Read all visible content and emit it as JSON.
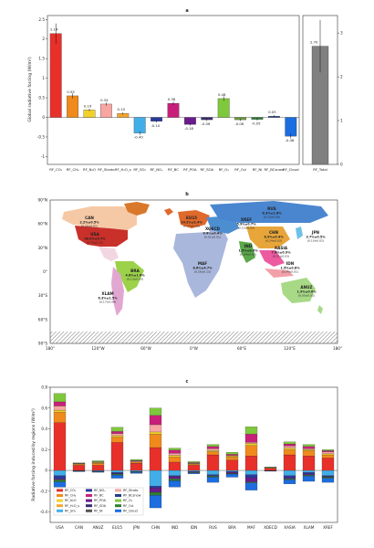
{
  "panels": {
    "a": {
      "label": "a",
      "ylabel": "Global radiative forcing (W/m²)",
      "right_ylabel": "",
      "yticks": [
        "-1",
        "-0.5",
        "0",
        "0.5",
        "1",
        "1.5",
        "2",
        "2.5"
      ],
      "right_yticks": [
        "0",
        "1",
        "2",
        "3"
      ]
    },
    "b": {
      "label": "b",
      "lat_ticks": [
        "90°N",
        "60°N",
        "30°N",
        "0°",
        "30°S",
        "60°S",
        "90°S"
      ],
      "lon_ticks": [
        "180°",
        "120°W",
        "60°W",
        "0°W",
        "60°E",
        "120°E",
        "180°"
      ]
    },
    "c": {
      "label": "c",
      "ylabel": "Radiative forcing induced by regions (W/m²)",
      "yticks": [
        "-0.4",
        "-0.2",
        "0",
        "0.2",
        "0.4",
        "0.6",
        "0.8"
      ]
    }
  },
  "chart_data": [
    {
      "type": "bar",
      "panel": "a",
      "categories": [
        "RF_CO2",
        "RF_CH4",
        "RF_N2O",
        "RF_Strato",
        "RF_H2Os",
        "RF_SO2",
        "RF_NOx",
        "RF_BC",
        "RF_POA",
        "RF_SOA",
        "RF_O3",
        "RF_O3t",
        "RF_Ni",
        "RF_BCsnow",
        "RF_Cloud"
      ],
      "category_labels": [
        "RF_CO₂",
        "RF_CH₄",
        "RF_N₂O",
        "RF_Strato",
        "RF_H₂O_s",
        "RF_SO₂",
        "RF_NOₓ",
        "RF_BC",
        "RF_POA",
        "RF_SOA",
        "RF_O₃",
        "RF_O₃t",
        "RF_Ni",
        "RF_BCsnow",
        "RF_Cloud"
      ],
      "values": [
        2.14,
        0.55,
        0.19,
        0.34,
        0.1,
        -0.4,
        -0.1,
        0.36,
        -0.18,
        -0.06,
        0.48,
        -0.06,
        -0.05,
        0.03,
        -0.48
      ],
      "value_labels": [
        "2.14",
        "0.55",
        "0.19",
        "0.34",
        "0.10",
        "-0.40",
        "-0.10",
        "0.36",
        "-0.18",
        "-0.06",
        "0.48",
        "-0.06",
        "-0.05",
        "0.03",
        "-0.48"
      ],
      "colors": [
        "#e8302a",
        "#f08a1c",
        "#f2d02a",
        "#f7a6a2",
        "#f3a62e",
        "#42aee8",
        "#2a3b9e",
        "#c8207a",
        "#6a1b8c",
        "#3b2a6e",
        "#7ec83c",
        "#6b9a3a",
        "#2e7d32",
        "#1f3f8a",
        "#1b6de0"
      ],
      "ylim": [
        -1.2,
        2.6
      ],
      "total": {
        "label": "RF_Total",
        "value": 2.7,
        "value_label": "2.70",
        "ylim": [
          0,
          3.4
        ],
        "color": "#808080"
      }
    },
    {
      "type": "map",
      "panel": "b",
      "regions": [
        {
          "name": "CAN",
          "value": "2.2%±0.5%",
          "sub": "(0.06±0.01)"
        },
        {
          "name": "USA",
          "value": "28.0%±5.7%",
          "sub": "(0.76±0.15)"
        },
        {
          "name": "EU15",
          "value": "14.2%±2.4%",
          "sub": "(0.37±0.06)"
        },
        {
          "name": "XOECD",
          "value": "0.4%±0.4%",
          "sub": "(0.01±0.01)"
        },
        {
          "name": "RUS",
          "value": "8.3%±1.6%",
          "sub": "(0.22±0.05)"
        },
        {
          "name": "XREF",
          "value": "5.9%±0.7%",
          "sub": "(0.15±0.02)"
        },
        {
          "name": "CHN",
          "value": "8.9%±0.4%",
          "sub": "(0.24±0.02)"
        },
        {
          "name": "JPN",
          "value": "3.7%±0.5%",
          "sub": "(0.10±0.01)"
        },
        {
          "name": "IND",
          "value": "1.5%±0.9%",
          "sub": "(0.04±0.02)"
        },
        {
          "name": "XASIA",
          "value": "7.8%±0.9%",
          "sub": "(0.21±0.03)"
        },
        {
          "name": "IDN",
          "value": "1.5%±0.8%",
          "sub": "(0.04±0.01)"
        },
        {
          "name": "MAF",
          "value": "8.6%±4.7%",
          "sub": "(0.26±0.13)"
        },
        {
          "name": "BRA",
          "value": "4.8%±1.6%",
          "sub": "(0.13±0.03)"
        },
        {
          "name": "XLAM",
          "value": "6.3%±1.5%",
          "sub": "(0.17±0.04)"
        },
        {
          "name": "ANUZ",
          "value": "1.9%±0.6%",
          "sub": "(0.05±0.01)"
        }
      ]
    },
    {
      "type": "bar",
      "stacked": true,
      "panel": "c",
      "categories": [
        "USA",
        "CAN",
        "ANUZ",
        "EU15",
        "JPN",
        "CHN",
        "IND",
        "IDN",
        "RUS",
        "BRA",
        "MAF",
        "XOECD",
        "XASIA",
        "XLAM",
        "XREF"
      ],
      "ylim": [
        -0.5,
        0.8
      ],
      "series": [
        {
          "name": "RF_CO2",
          "color": "#e8302a",
          "values": [
            0.46,
            0.05,
            0.05,
            0.27,
            0.07,
            0.22,
            0.08,
            0.05,
            0.15,
            0.1,
            0.14,
            0.02,
            0.15,
            0.14,
            0.12
          ]
        },
        {
          "name": "RF_CH4",
          "color": "#f08a1c",
          "values": [
            0.1,
            0.01,
            0.02,
            0.05,
            0.01,
            0.13,
            0.05,
            0.01,
            0.03,
            0.03,
            0.1,
            0.004,
            0.05,
            0.05,
            0.03
          ]
        },
        {
          "name": "RF_N2O",
          "color": "#f2d02a",
          "values": [
            0.02,
            0.003,
            0.005,
            0.015,
            0.003,
            0.02,
            0.015,
            0.005,
            0.01,
            0.01,
            0.02,
            0.002,
            0.015,
            0.01,
            0.01
          ]
        },
        {
          "name": "RF_Strato",
          "color": "#f7a6a2",
          "values": [
            0.04,
            0.004,
            0.005,
            0.02,
            0.008,
            0.07,
            0.02,
            0.005,
            0.02,
            0.005,
            0.01,
            0.003,
            0.02,
            0.01,
            0.02
          ]
        },
        {
          "name": "RF_BC",
          "color": "#c8207a",
          "values": [
            0.04,
            0.003,
            0.003,
            0.02,
            0.005,
            0.09,
            0.03,
            0.005,
            0.02,
            0.01,
            0.08,
            0.001,
            0.02,
            0.02,
            0.01
          ]
        },
        {
          "name": "RF_O3",
          "color": "#7ec83c",
          "values": [
            0.08,
            0.004,
            0.01,
            0.04,
            0.01,
            0.07,
            0.02,
            0.01,
            0.02,
            0.02,
            0.07,
            0.004,
            0.02,
            0.02,
            0.01
          ]
        },
        {
          "name": "RF_SO2",
          "color": "#42aee8",
          "values": [
            -0.05,
            -0.002,
            -0.005,
            -0.02,
            -0.01,
            -0.15,
            -0.05,
            -0.01,
            -0.04,
            -0.01,
            -0.04,
            -0.002,
            -0.05,
            -0.02,
            -0.05
          ]
        },
        {
          "name": "RF_NOx",
          "color": "#2a3b9e",
          "values": [
            -0.03,
            -0.003,
            -0.004,
            -0.01,
            -0.004,
            -0.02,
            -0.01,
            -0.004,
            -0.01,
            -0.01,
            -0.03,
            -0.001,
            -0.02,
            -0.015,
            -0.01
          ]
        },
        {
          "name": "RF_POA",
          "color": "#6a1b8c",
          "values": [
            -0.01,
            -0.001,
            -0.001,
            -0.005,
            -0.001,
            -0.04,
            -0.02,
            -0.005,
            -0.005,
            -0.01,
            -0.04,
            -0.001,
            -0.01,
            -0.01,
            -0.005
          ]
        },
        {
          "name": "RF_O3t",
          "color": "#2e7d32",
          "values": [
            -0.02,
            -0.002,
            -0.003,
            -0.01,
            -0.004,
            -0.03,
            -0.02,
            -0.004,
            -0.01,
            -0.005,
            -0.01,
            -0.001,
            -0.01,
            -0.01,
            -0.01
          ]
        },
        {
          "name": "RF_Cloud",
          "color": "#1b6de0",
          "values": [
            -0.05,
            -0.004,
            -0.005,
            -0.03,
            -0.01,
            -0.12,
            -0.06,
            -0.01,
            -0.05,
            -0.03,
            -0.07,
            -0.003,
            -0.04,
            -0.05,
            -0.04
          ]
        }
      ],
      "legend": [
        {
          "label": "RF_CO₂",
          "color": "#e8302a"
        },
        {
          "label": "RF_CH₄",
          "color": "#f08a1c"
        },
        {
          "label": "RF_N₂O",
          "color": "#f2d02a"
        },
        {
          "label": "RF_H₂O_s",
          "color": "#f3a62e"
        },
        {
          "label": "RF_SO₂",
          "color": "#42aee8"
        },
        {
          "label": "RF_NOₓ",
          "color": "#2a3b9e"
        },
        {
          "label": "RF_BC",
          "color": "#c8207a"
        },
        {
          "label": "RF_POA",
          "color": "#6a1b8c"
        },
        {
          "label": "RF_SOA",
          "color": "#3b2a6e"
        },
        {
          "label": "RF_Ni",
          "color": "#555555"
        },
        {
          "label": "RF_Strato",
          "color": "#f7a6a2"
        },
        {
          "label": "RF_BCsnow",
          "color": "#1f3f8a"
        },
        {
          "label": "RF_O₃",
          "color": "#7ec83c"
        },
        {
          "label": "RF_O₃t",
          "color": "#2e7d32"
        },
        {
          "label": "RF_Cloud",
          "color": "#1b6de0"
        }
      ]
    }
  ]
}
